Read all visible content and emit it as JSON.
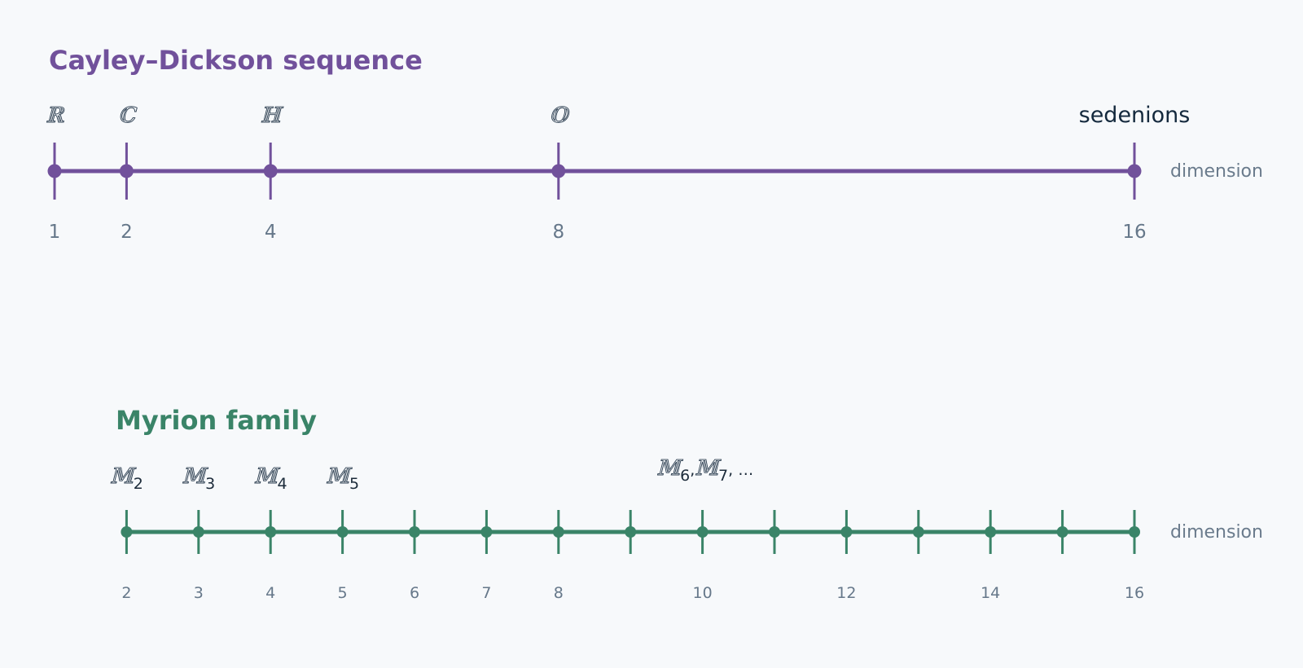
{
  "colors": {
    "background": "#f7f9fb",
    "cayley": "#71519b",
    "myrion": "#3a8468",
    "label_muted": "#66788a",
    "label_dark": "#14293d"
  },
  "cayley": {
    "title": "Cayley–Dickson sequence",
    "axis_label": "dimension",
    "points": [
      {
        "dim": 1,
        "tick_label": "1",
        "symbol": "ℝ",
        "sub": "",
        "style": "symbol"
      },
      {
        "dim": 2,
        "tick_label": "2",
        "symbol": "ℂ",
        "sub": "",
        "style": "symbol"
      },
      {
        "dim": 4,
        "tick_label": "4",
        "symbol": "ℍ",
        "sub": "",
        "style": "symbol"
      },
      {
        "dim": 8,
        "tick_label": "8",
        "symbol": "𝕆",
        "sub": "",
        "style": "symbol"
      },
      {
        "dim": 16,
        "tick_label": "16",
        "symbol": "sedenions",
        "sub": "",
        "style": "plain"
      }
    ]
  },
  "myrion": {
    "title": "Myrion family",
    "axis_label": "dimension",
    "ticks": [
      2,
      3,
      4,
      5,
      6,
      7,
      8,
      9,
      10,
      11,
      12,
      13,
      14,
      15,
      16
    ],
    "tick_labels": [
      {
        "dim": 2,
        "text": "2"
      },
      {
        "dim": 3,
        "text": "3"
      },
      {
        "dim": 4,
        "text": "4"
      },
      {
        "dim": 5,
        "text": "5"
      },
      {
        "dim": 6,
        "text": "6"
      },
      {
        "dim": 7,
        "text": "7"
      },
      {
        "dim": 8,
        "text": "8"
      },
      {
        "dim": 10,
        "text": "10"
      },
      {
        "dim": 12,
        "text": "12"
      },
      {
        "dim": 14,
        "text": "14"
      },
      {
        "dim": 16,
        "text": "16"
      }
    ],
    "symbols": [
      {
        "dim": 2,
        "symbol": "𝕄",
        "sub": "2"
      },
      {
        "dim": 3,
        "symbol": "𝕄",
        "sub": "3"
      },
      {
        "dim": 4,
        "symbol": "𝕄",
        "sub": "4"
      },
      {
        "dim": 5,
        "symbol": "𝕄",
        "sub": "5"
      }
    ],
    "continuation": {
      "dim": 10.5,
      "parts": [
        {
          "symbol": "𝕄",
          "sub": "6",
          "sep": ","
        },
        {
          "symbol": "𝕄",
          "sub": "7",
          "sep": ", …"
        }
      ]
    }
  }
}
